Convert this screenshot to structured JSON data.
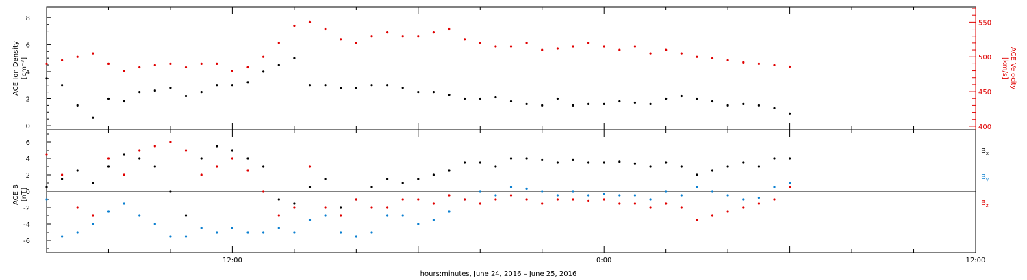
{
  "footer": {
    "xlabel": "hours:minutes, June 24, 2016 – June 25, 2016"
  },
  "colors": {
    "black": "#000000",
    "red": "#e00000",
    "blue": "#0a7fd0"
  },
  "chart_data": [
    {
      "type": "scatter",
      "panel": "top",
      "ylabel_left": "ACE Ion Density",
      "ylabel_left_units": "[cm⁻³]",
      "ylabel_right": "ACE Velocity",
      "ylabel_right_units": "[km/s]",
      "xlim_hours": [
        0,
        30
      ],
      "x_ticks": [
        {
          "hour": 6,
          "label": "12:00"
        },
        {
          "hour": 18,
          "label": "0:00"
        },
        {
          "hour": 30,
          "label": "12:00"
        }
      ],
      "ylim_left": [
        -0.3,
        8.8
      ],
      "yticks_left": [
        0,
        2,
        4,
        6,
        8
      ],
      "ylim_right": [
        395,
        572
      ],
      "yticks_right": [
        400,
        450,
        500,
        550
      ],
      "series": [
        {
          "name": "Ion Density",
          "axis": "left",
          "color": "#000000",
          "x": [
            0.0,
            0.5,
            1.0,
            1.5,
            2.0,
            2.5,
            3.0,
            3.5,
            4.0,
            4.5,
            5.0,
            5.5,
            6.0,
            6.5,
            7.0,
            7.5,
            8.0,
            8.5,
            9.0,
            9.5,
            10.0,
            10.5,
            11.0,
            11.5,
            12.0,
            12.5,
            13.0,
            13.5,
            14.0,
            14.5,
            15.0,
            15.5,
            16.0,
            16.5,
            17.0,
            17.5,
            18.0,
            18.5,
            19.0,
            19.5,
            20.0,
            20.5,
            21.0,
            21.5,
            22.0,
            22.5,
            23.0,
            23.5,
            24.0
          ],
          "y": [
            3.5,
            3.0,
            1.5,
            0.6,
            2.0,
            1.8,
            2.5,
            2.6,
            2.8,
            2.2,
            2.5,
            3.0,
            3.0,
            3.2,
            4.0,
            4.5,
            5.0,
            3.0,
            3.0,
            2.8,
            2.8,
            3.0,
            3.0,
            2.8,
            2.5,
            2.5,
            2.3,
            2.0,
            2.0,
            2.1,
            1.8,
            1.6,
            1.5,
            2.0,
            1.5,
            1.6,
            1.6,
            1.8,
            1.7,
            1.6,
            2.0,
            2.2,
            2.0,
            1.8,
            1.5,
            1.6,
            1.5,
            1.3,
            0.9
          ]
        },
        {
          "name": "Velocity",
          "axis": "right",
          "color": "#e00000",
          "x": [
            0.0,
            0.5,
            1.0,
            1.5,
            2.0,
            2.5,
            3.0,
            3.5,
            4.0,
            4.5,
            5.0,
            5.5,
            6.0,
            6.5,
            7.0,
            7.5,
            8.0,
            8.5,
            9.0,
            9.5,
            10.0,
            10.5,
            11.0,
            11.5,
            12.0,
            12.5,
            13.0,
            13.5,
            14.0,
            14.5,
            15.0,
            15.5,
            16.0,
            16.5,
            17.0,
            17.5,
            18.0,
            18.5,
            19.0,
            19.5,
            20.0,
            20.5,
            21.0,
            21.5,
            22.0,
            22.5,
            23.0,
            23.5,
            24.0
          ],
          "y": [
            490,
            495,
            500,
            505,
            490,
            480,
            485,
            488,
            490,
            485,
            490,
            490,
            480,
            485,
            500,
            520,
            545,
            550,
            540,
            525,
            520,
            530,
            535,
            530,
            530,
            535,
            540,
            525,
            520,
            515,
            515,
            520,
            510,
            512,
            515,
            520,
            515,
            510,
            515,
            505,
            510,
            505,
            500,
            498,
            495,
            492,
            490,
            488,
            486
          ]
        }
      ]
    },
    {
      "type": "scatter",
      "panel": "bottom",
      "ylabel_left": "ACE B",
      "ylabel_left_units": "[nT]",
      "xlim_hours": [
        0,
        30
      ],
      "x_ticks": [
        {
          "hour": 6,
          "label": "12:00"
        },
        {
          "hour": 18,
          "label": "0:00"
        },
        {
          "hour": 30,
          "label": "12:00"
        }
      ],
      "ylim": [
        -7.5,
        7.5
      ],
      "yticks": [
        -6,
        -4,
        -2,
        0,
        2,
        4,
        6
      ],
      "legend": [
        {
          "base": "B",
          "sub": "x",
          "color": "#000000"
        },
        {
          "base": "B",
          "sub": "y",
          "color": "#0a7fd0"
        },
        {
          "base": "B",
          "sub": "z",
          "color": "#e00000"
        }
      ],
      "series": [
        {
          "name": "Bx",
          "color": "#000000",
          "x": [
            0.0,
            0.5,
            1.0,
            1.5,
            2.0,
            2.5,
            3.0,
            3.5,
            4.0,
            4.5,
            5.0,
            5.5,
            6.0,
            6.5,
            7.0,
            7.5,
            8.0,
            8.5,
            9.0,
            9.5,
            10.0,
            10.5,
            11.0,
            11.5,
            12.0,
            12.5,
            13.0,
            13.5,
            14.0,
            14.5,
            15.0,
            15.5,
            16.0,
            16.5,
            17.0,
            17.5,
            18.0,
            18.5,
            19.0,
            19.5,
            20.0,
            20.5,
            21.0,
            21.5,
            22.0,
            22.5,
            23.0,
            23.5,
            24.0
          ],
          "y": [
            0.5,
            1.5,
            2.5,
            1.0,
            3.0,
            4.5,
            4.0,
            3.0,
            0.0,
            -3.0,
            4.0,
            5.5,
            5.0,
            4.0,
            3.0,
            -1.0,
            -1.5,
            0.5,
            1.5,
            -2.0,
            -1.0,
            0.5,
            1.5,
            1.0,
            1.5,
            2.0,
            2.5,
            3.5,
            3.5,
            3.0,
            4.0,
            4.0,
            3.8,
            3.5,
            3.8,
            3.5,
            3.5,
            3.6,
            3.4,
            3.0,
            3.5,
            3.0,
            2.0,
            2.5,
            3.0,
            3.5,
            3.0,
            4.0,
            4.0
          ]
        },
        {
          "name": "By",
          "color": "#0a7fd0",
          "x": [
            0.0,
            0.5,
            1.0,
            1.5,
            2.0,
            2.5,
            3.0,
            3.5,
            4.0,
            4.5,
            5.0,
            5.5,
            6.0,
            6.5,
            7.0,
            7.5,
            8.0,
            8.5,
            9.0,
            9.5,
            10.0,
            10.5,
            11.0,
            11.5,
            12.0,
            12.5,
            13.0,
            13.5,
            14.0,
            14.5,
            15.0,
            15.5,
            16.0,
            16.5,
            17.0,
            17.5,
            18.0,
            18.5,
            19.0,
            19.5,
            20.0,
            20.5,
            21.0,
            21.5,
            22.0,
            22.5,
            23.0,
            23.5,
            24.0
          ],
          "y": [
            -1.0,
            -5.5,
            -5.0,
            -4.0,
            -2.5,
            -1.5,
            -3.0,
            -4.0,
            -5.5,
            -5.5,
            -4.5,
            -5.0,
            -4.5,
            -5.0,
            -5.0,
            -4.5,
            -5.0,
            -3.5,
            -3.0,
            -5.0,
            -5.5,
            -5.0,
            -3.0,
            -3.0,
            -4.0,
            -3.5,
            -2.5,
            -1.0,
            0.0,
            -0.5,
            0.5,
            0.3,
            0.0,
            -0.5,
            0.0,
            -0.5,
            -0.3,
            -0.5,
            -0.5,
            -1.0,
            0.0,
            -0.5,
            0.5,
            0.0,
            -0.5,
            -1.0,
            -0.8,
            0.5,
            1.0
          ]
        },
        {
          "name": "Bz",
          "color": "#e00000",
          "x": [
            0.0,
            0.5,
            1.0,
            1.5,
            2.0,
            2.5,
            3.0,
            3.5,
            4.0,
            4.5,
            5.0,
            5.5,
            6.0,
            6.5,
            7.0,
            7.5,
            8.0,
            8.5,
            9.0,
            9.5,
            10.0,
            10.5,
            11.0,
            11.5,
            12.0,
            12.5,
            13.0,
            13.5,
            14.0,
            14.5,
            15.0,
            15.5,
            16.0,
            16.5,
            17.0,
            17.5,
            18.0,
            18.5,
            19.0,
            19.5,
            20.0,
            20.5,
            21.0,
            21.5,
            22.0,
            22.5,
            23.0,
            23.5,
            24.0
          ],
          "y": [
            4.5,
            2.0,
            -2.0,
            -3.0,
            4.0,
            2.0,
            5.0,
            5.5,
            6.0,
            5.0,
            2.0,
            3.0,
            4.0,
            2.5,
            0.0,
            -3.0,
            -2.0,
            3.0,
            -2.0,
            -3.0,
            -1.0,
            -2.0,
            -2.0,
            -1.0,
            -1.0,
            -1.5,
            -0.5,
            -1.0,
            -1.5,
            -1.0,
            -0.5,
            -1.0,
            -1.5,
            -1.0,
            -1.0,
            -1.2,
            -1.0,
            -1.5,
            -1.5,
            -2.0,
            -1.5,
            -2.0,
            -3.5,
            -3.0,
            -2.5,
            -2.0,
            -1.5,
            -1.0,
            0.5
          ]
        }
      ]
    }
  ]
}
